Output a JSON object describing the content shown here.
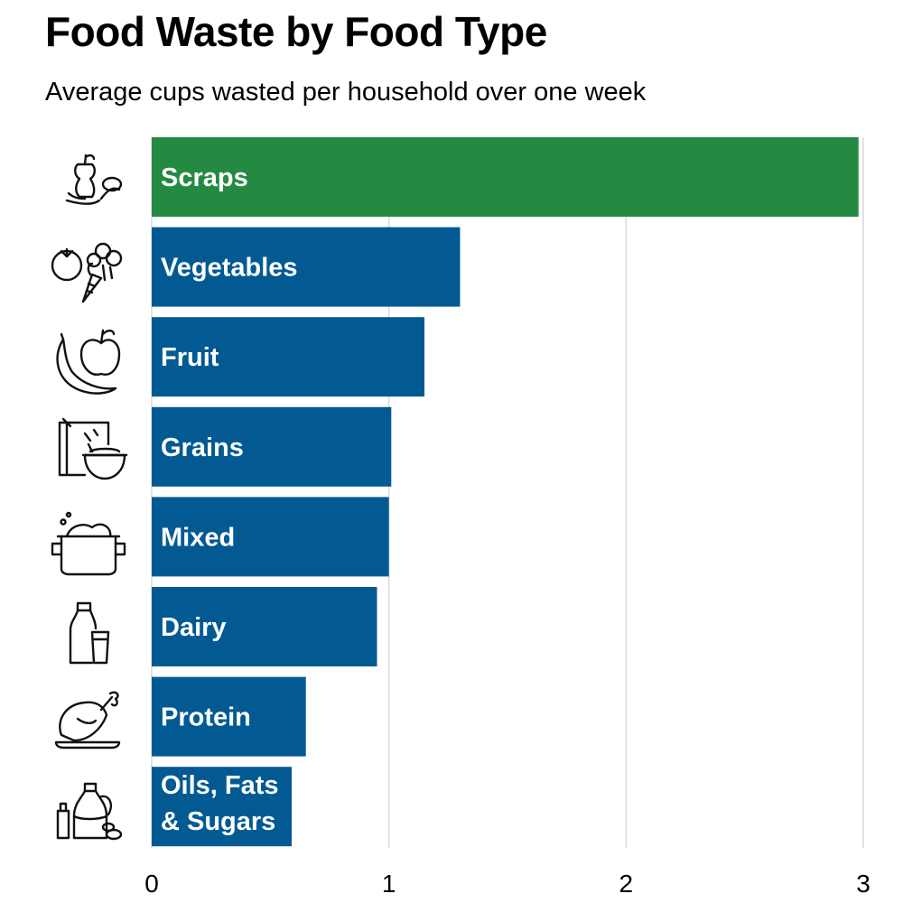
{
  "chart_data": {
    "type": "bar",
    "orientation": "horizontal",
    "title": "Food Waste by Food Type",
    "subtitle": "Average cups wasted per household over one week",
    "xlabel": "",
    "ylabel": "",
    "xlim": [
      0,
      3
    ],
    "x_ticks": [
      "0",
      "1",
      "2",
      "3"
    ],
    "grid": true,
    "categories": [
      {
        "label": "Scraps",
        "icon": "apple-core-banana-peel-icon"
      },
      {
        "label": "Vegetables",
        "icon": "tomato-carrot-broccoli-icon"
      },
      {
        "label": "Fruit",
        "icon": "apple-banana-icon"
      },
      {
        "label": "Grains",
        "icon": "cereal-box-bowl-icon"
      },
      {
        "label": "Mixed",
        "icon": "cooking-pot-icon"
      },
      {
        "label": "Dairy",
        "icon": "milk-bottle-glass-icon"
      },
      {
        "label": "Protein",
        "icon": "roast-chicken-icon"
      },
      {
        "label": "Oils, Fats & Sugars",
        "label_lines": [
          "Oils, Fats",
          "& Sugars"
        ],
        "icon": "oil-bottle-jar-icon"
      }
    ],
    "values": [
      2.98,
      1.3,
      1.15,
      1.01,
      1.0,
      0.95,
      0.65,
      0.59
    ],
    "colors": {
      "highlight": "#258a41",
      "default": "#035a93",
      "grid": "#d9d9d9"
    },
    "highlight_index": 0
  }
}
